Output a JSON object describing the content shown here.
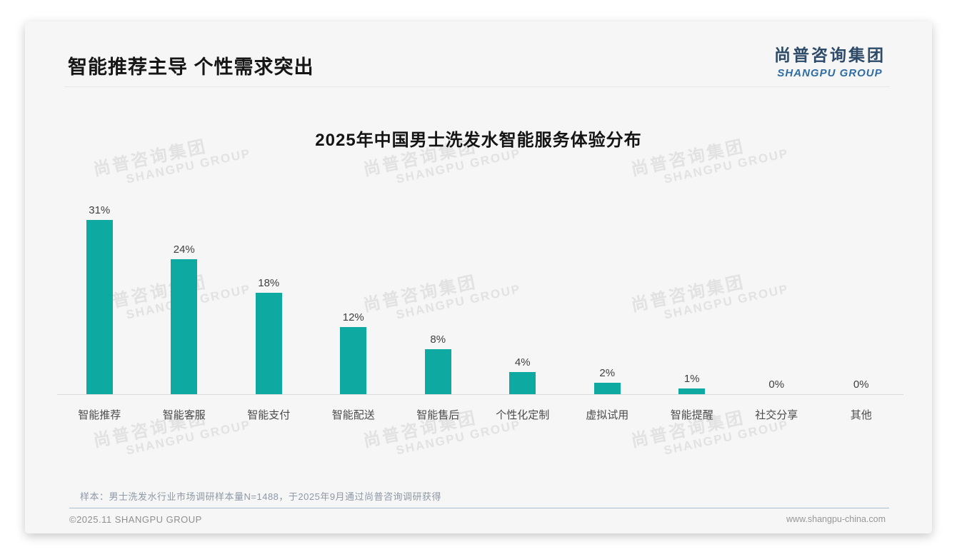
{
  "header": {
    "title": "智能推荐主导 个性需求突出"
  },
  "brand": {
    "name_cn": "尚普咨询集团",
    "name_en": "SHANGPU GROUP"
  },
  "watermark": {
    "line1": "尚普咨询集团",
    "line2": "SHANGPU GROUP"
  },
  "chart_data": {
    "type": "bar",
    "title": "2025年中国男士洗发水智能服务体验分布",
    "categories": [
      "智能推荐",
      "智能客服",
      "智能支付",
      "智能配送",
      "智能售后",
      "个性化定制",
      "虚拟试用",
      "智能提醒",
      "社交分享",
      "其他"
    ],
    "values": [
      31,
      24,
      18,
      12,
      8,
      4,
      2,
      1,
      0,
      0
    ],
    "value_labels": [
      "31%",
      "24%",
      "18%",
      "12%",
      "8%",
      "4%",
      "2%",
      "1%",
      "0%",
      "0%"
    ],
    "unit": "%",
    "xlabel": "",
    "ylabel": "",
    "ylim": [
      0,
      31
    ],
    "grid": false,
    "legend": "none",
    "bar_color": "#0EA9A1"
  },
  "footer": {
    "note": "样本：男士洗发水行业市场调研样本量N=1488，于2025年9月通过尚普咨询调研获得",
    "copyright": "©2025.11 SHANGPU GROUP",
    "website": "www.shangpu-china.com"
  }
}
